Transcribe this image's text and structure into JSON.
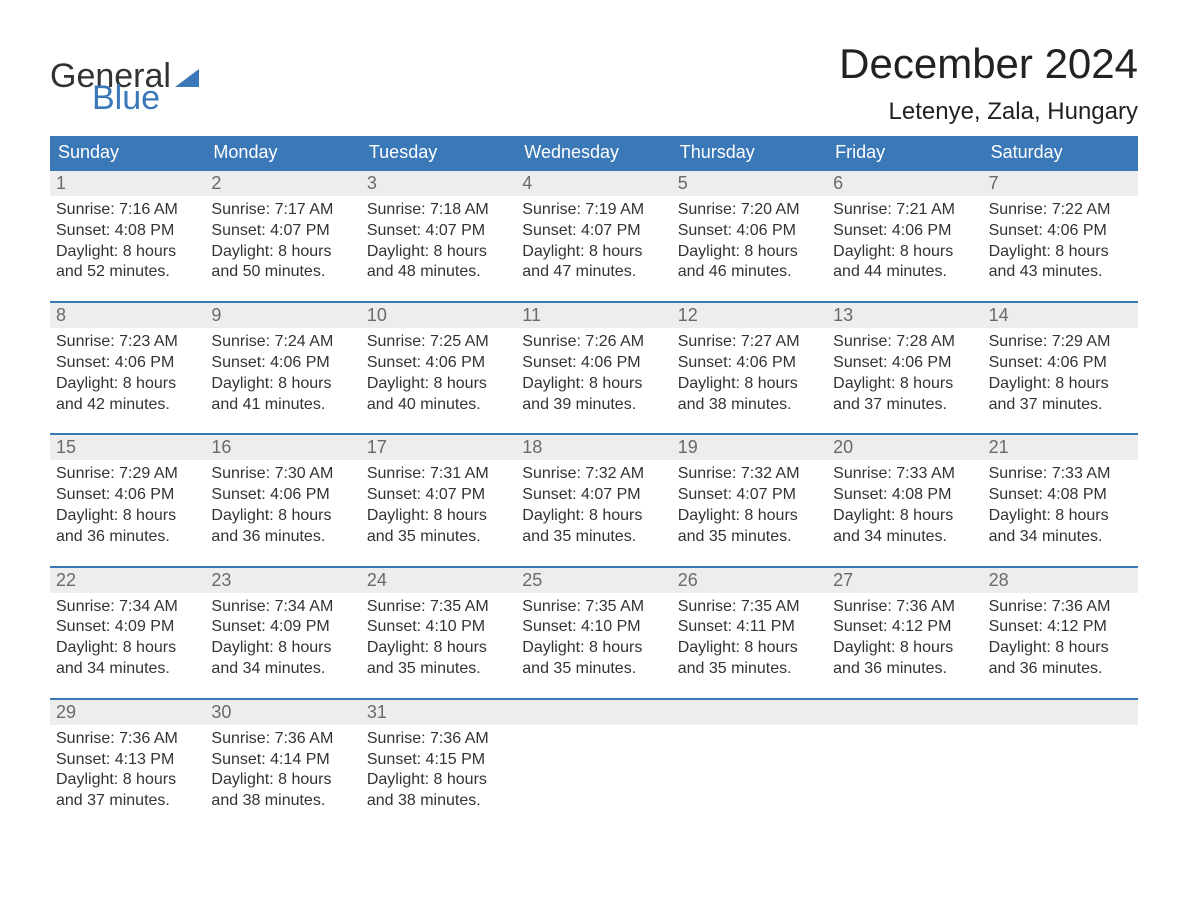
{
  "brand": {
    "word1": "General",
    "word2": "Blue"
  },
  "header": {
    "month_title": "December 2024",
    "location": "Letenye, Zala, Hungary"
  },
  "style": {
    "accent_color": "#3a78b8",
    "header_bg": "#3a78b8",
    "header_text": "#ffffff",
    "daynum_bg": "#ededed",
    "daynum_color": "#6a6a6a",
    "body_text": "#333333",
    "background": "#ffffff",
    "month_title_fontsize": 42,
    "location_fontsize": 24,
    "weekday_fontsize": 18,
    "daynum_fontsize": 18,
    "cell_fontsize": 16
  },
  "weekdays": [
    "Sunday",
    "Monday",
    "Tuesday",
    "Wednesday",
    "Thursday",
    "Friday",
    "Saturday"
  ],
  "weeks": [
    [
      {
        "num": "1",
        "sunrise": "Sunrise: 7:16 AM",
        "sunset": "Sunset: 4:08 PM",
        "d1": "Daylight: 8 hours",
        "d2": "and 52 minutes."
      },
      {
        "num": "2",
        "sunrise": "Sunrise: 7:17 AM",
        "sunset": "Sunset: 4:07 PM",
        "d1": "Daylight: 8 hours",
        "d2": "and 50 minutes."
      },
      {
        "num": "3",
        "sunrise": "Sunrise: 7:18 AM",
        "sunset": "Sunset: 4:07 PM",
        "d1": "Daylight: 8 hours",
        "d2": "and 48 minutes."
      },
      {
        "num": "4",
        "sunrise": "Sunrise: 7:19 AM",
        "sunset": "Sunset: 4:07 PM",
        "d1": "Daylight: 8 hours",
        "d2": "and 47 minutes."
      },
      {
        "num": "5",
        "sunrise": "Sunrise: 7:20 AM",
        "sunset": "Sunset: 4:06 PM",
        "d1": "Daylight: 8 hours",
        "d2": "and 46 minutes."
      },
      {
        "num": "6",
        "sunrise": "Sunrise: 7:21 AM",
        "sunset": "Sunset: 4:06 PM",
        "d1": "Daylight: 8 hours",
        "d2": "and 44 minutes."
      },
      {
        "num": "7",
        "sunrise": "Sunrise: 7:22 AM",
        "sunset": "Sunset: 4:06 PM",
        "d1": "Daylight: 8 hours",
        "d2": "and 43 minutes."
      }
    ],
    [
      {
        "num": "8",
        "sunrise": "Sunrise: 7:23 AM",
        "sunset": "Sunset: 4:06 PM",
        "d1": "Daylight: 8 hours",
        "d2": "and 42 minutes."
      },
      {
        "num": "9",
        "sunrise": "Sunrise: 7:24 AM",
        "sunset": "Sunset: 4:06 PM",
        "d1": "Daylight: 8 hours",
        "d2": "and 41 minutes."
      },
      {
        "num": "10",
        "sunrise": "Sunrise: 7:25 AM",
        "sunset": "Sunset: 4:06 PM",
        "d1": "Daylight: 8 hours",
        "d2": "and 40 minutes."
      },
      {
        "num": "11",
        "sunrise": "Sunrise: 7:26 AM",
        "sunset": "Sunset: 4:06 PM",
        "d1": "Daylight: 8 hours",
        "d2": "and 39 minutes."
      },
      {
        "num": "12",
        "sunrise": "Sunrise: 7:27 AM",
        "sunset": "Sunset: 4:06 PM",
        "d1": "Daylight: 8 hours",
        "d2": "and 38 minutes."
      },
      {
        "num": "13",
        "sunrise": "Sunrise: 7:28 AM",
        "sunset": "Sunset: 4:06 PM",
        "d1": "Daylight: 8 hours",
        "d2": "and 37 minutes."
      },
      {
        "num": "14",
        "sunrise": "Sunrise: 7:29 AM",
        "sunset": "Sunset: 4:06 PM",
        "d1": "Daylight: 8 hours",
        "d2": "and 37 minutes."
      }
    ],
    [
      {
        "num": "15",
        "sunrise": "Sunrise: 7:29 AM",
        "sunset": "Sunset: 4:06 PM",
        "d1": "Daylight: 8 hours",
        "d2": "and 36 minutes."
      },
      {
        "num": "16",
        "sunrise": "Sunrise: 7:30 AM",
        "sunset": "Sunset: 4:06 PM",
        "d1": "Daylight: 8 hours",
        "d2": "and 36 minutes."
      },
      {
        "num": "17",
        "sunrise": "Sunrise: 7:31 AM",
        "sunset": "Sunset: 4:07 PM",
        "d1": "Daylight: 8 hours",
        "d2": "and 35 minutes."
      },
      {
        "num": "18",
        "sunrise": "Sunrise: 7:32 AM",
        "sunset": "Sunset: 4:07 PM",
        "d1": "Daylight: 8 hours",
        "d2": "and 35 minutes."
      },
      {
        "num": "19",
        "sunrise": "Sunrise: 7:32 AM",
        "sunset": "Sunset: 4:07 PM",
        "d1": "Daylight: 8 hours",
        "d2": "and 35 minutes."
      },
      {
        "num": "20",
        "sunrise": "Sunrise: 7:33 AM",
        "sunset": "Sunset: 4:08 PM",
        "d1": "Daylight: 8 hours",
        "d2": "and 34 minutes."
      },
      {
        "num": "21",
        "sunrise": "Sunrise: 7:33 AM",
        "sunset": "Sunset: 4:08 PM",
        "d1": "Daylight: 8 hours",
        "d2": "and 34 minutes."
      }
    ],
    [
      {
        "num": "22",
        "sunrise": "Sunrise: 7:34 AM",
        "sunset": "Sunset: 4:09 PM",
        "d1": "Daylight: 8 hours",
        "d2": "and 34 minutes."
      },
      {
        "num": "23",
        "sunrise": "Sunrise: 7:34 AM",
        "sunset": "Sunset: 4:09 PM",
        "d1": "Daylight: 8 hours",
        "d2": "and 34 minutes."
      },
      {
        "num": "24",
        "sunrise": "Sunrise: 7:35 AM",
        "sunset": "Sunset: 4:10 PM",
        "d1": "Daylight: 8 hours",
        "d2": "and 35 minutes."
      },
      {
        "num": "25",
        "sunrise": "Sunrise: 7:35 AM",
        "sunset": "Sunset: 4:10 PM",
        "d1": "Daylight: 8 hours",
        "d2": "and 35 minutes."
      },
      {
        "num": "26",
        "sunrise": "Sunrise: 7:35 AM",
        "sunset": "Sunset: 4:11 PM",
        "d1": "Daylight: 8 hours",
        "d2": "and 35 minutes."
      },
      {
        "num": "27",
        "sunrise": "Sunrise: 7:36 AM",
        "sunset": "Sunset: 4:12 PM",
        "d1": "Daylight: 8 hours",
        "d2": "and 36 minutes."
      },
      {
        "num": "28",
        "sunrise": "Sunrise: 7:36 AM",
        "sunset": "Sunset: 4:12 PM",
        "d1": "Daylight: 8 hours",
        "d2": "and 36 minutes."
      }
    ],
    [
      {
        "num": "29",
        "sunrise": "Sunrise: 7:36 AM",
        "sunset": "Sunset: 4:13 PM",
        "d1": "Daylight: 8 hours",
        "d2": "and 37 minutes."
      },
      {
        "num": "30",
        "sunrise": "Sunrise: 7:36 AM",
        "sunset": "Sunset: 4:14 PM",
        "d1": "Daylight: 8 hours",
        "d2": "and 38 minutes."
      },
      {
        "num": "31",
        "sunrise": "Sunrise: 7:36 AM",
        "sunset": "Sunset: 4:15 PM",
        "d1": "Daylight: 8 hours",
        "d2": "and 38 minutes."
      },
      {
        "num": "",
        "sunrise": "",
        "sunset": "",
        "d1": "",
        "d2": ""
      },
      {
        "num": "",
        "sunrise": "",
        "sunset": "",
        "d1": "",
        "d2": ""
      },
      {
        "num": "",
        "sunrise": "",
        "sunset": "",
        "d1": "",
        "d2": ""
      },
      {
        "num": "",
        "sunrise": "",
        "sunset": "",
        "d1": "",
        "d2": ""
      }
    ]
  ]
}
